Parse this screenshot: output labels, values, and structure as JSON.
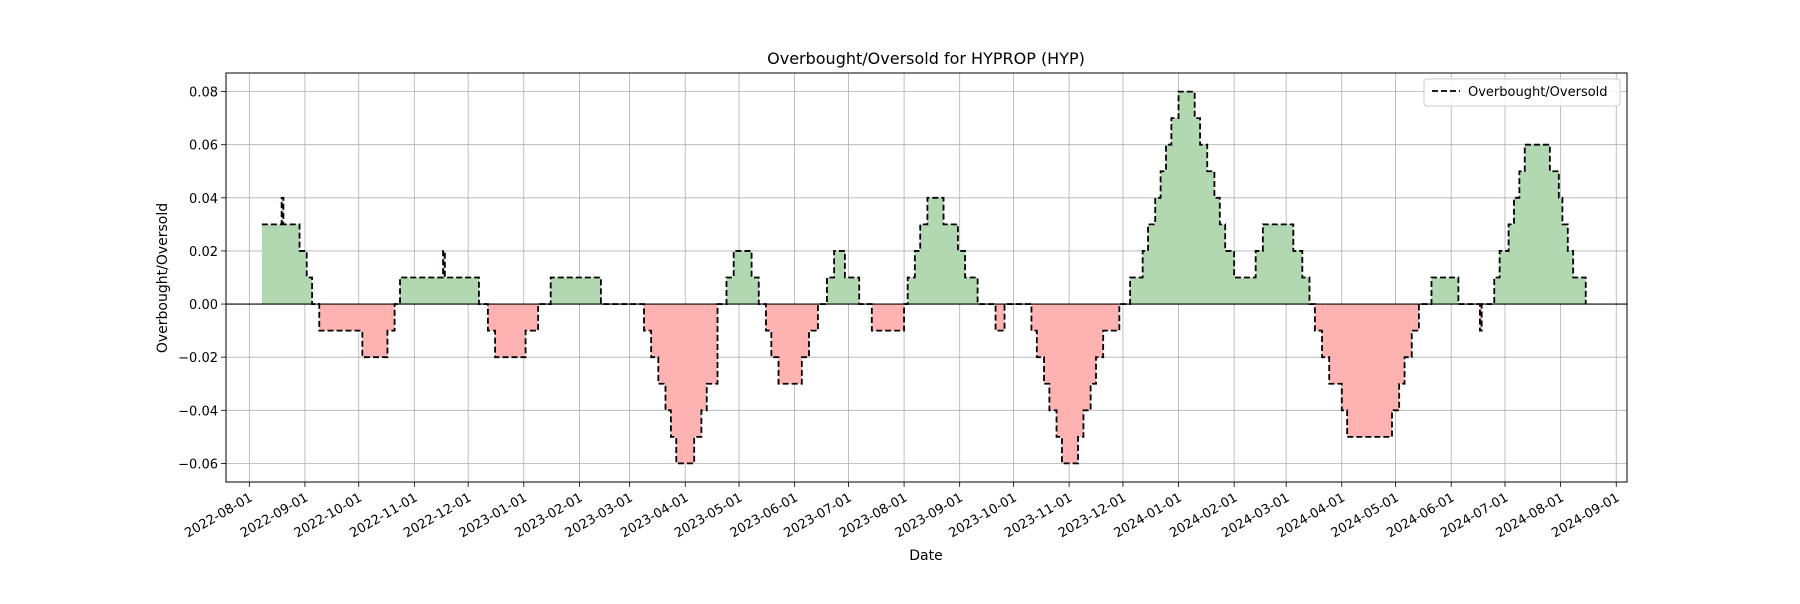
{
  "chart_data": {
    "type": "area",
    "title": "Overbought/Oversold for HYPROP (HYP)",
    "xlabel": "Date",
    "ylabel": "Overbought/Oversold",
    "xlim": [
      "2022-07-19",
      "2024-09-07"
    ],
    "ylim": [
      -0.067,
      0.087
    ],
    "grid": true,
    "legend": {
      "position": "top-right",
      "entries": [
        "Overbought/Oversold"
      ]
    },
    "colors": {
      "positive_fill": "#b2d8b2",
      "negative_fill": "#ffb2b2",
      "line": "#000000",
      "zero_line": "#000000"
    },
    "x_ticks": [
      "2022-08-01",
      "2022-09-01",
      "2022-10-01",
      "2022-11-01",
      "2022-12-01",
      "2023-01-01",
      "2023-02-01",
      "2023-03-01",
      "2023-04-01",
      "2023-05-01",
      "2023-06-01",
      "2023-07-01",
      "2023-08-01",
      "2023-09-01",
      "2023-10-01",
      "2023-11-01",
      "2023-12-01",
      "2024-01-01",
      "2024-02-01",
      "2024-03-01",
      "2024-04-01",
      "2024-05-01",
      "2024-06-01",
      "2024-07-01",
      "2024-08-01",
      "2024-09-01"
    ],
    "y_ticks": [
      -0.06,
      -0.04,
      -0.02,
      0.0,
      0.02,
      0.04,
      0.06,
      0.08
    ],
    "y_tick_labels": [
      "−0.06",
      "−0.04",
      "−0.02",
      "0.00",
      "0.02",
      "0.04",
      "0.06",
      "0.08"
    ],
    "series": [
      {
        "name": "Overbought/Oversold",
        "style": "dashed-step",
        "points": [
          [
            "2022-08-08",
            0.03
          ],
          [
            "2022-08-18",
            0.03
          ],
          [
            "2022-08-19",
            0.04
          ],
          [
            "2022-08-20",
            0.03
          ],
          [
            "2022-08-27",
            0.03
          ],
          [
            "2022-08-29",
            0.02
          ],
          [
            "2022-09-02",
            0.01
          ],
          [
            "2022-09-05",
            0.0
          ],
          [
            "2022-09-09",
            -0.01
          ],
          [
            "2022-09-30",
            -0.01
          ],
          [
            "2022-10-03",
            -0.02
          ],
          [
            "2022-10-14",
            -0.02
          ],
          [
            "2022-10-17",
            -0.01
          ],
          [
            "2022-10-21",
            0.0
          ],
          [
            "2022-10-24",
            0.01
          ],
          [
            "2022-11-16",
            0.01
          ],
          [
            "2022-11-17",
            0.02
          ],
          [
            "2022-11-18",
            0.01
          ],
          [
            "2022-12-05",
            0.01
          ],
          [
            "2022-12-07",
            0.0
          ],
          [
            "2022-12-12",
            -0.01
          ],
          [
            "2022-12-16",
            -0.02
          ],
          [
            "2022-12-30",
            -0.02
          ],
          [
            "2023-01-02",
            -0.01
          ],
          [
            "2023-01-09",
            0.0
          ],
          [
            "2023-01-16",
            0.01
          ],
          [
            "2023-02-10",
            0.01
          ],
          [
            "2023-02-13",
            0.0
          ],
          [
            "2023-03-06",
            0.0
          ],
          [
            "2023-03-09",
            -0.01
          ],
          [
            "2023-03-13",
            -0.02
          ],
          [
            "2023-03-17",
            -0.03
          ],
          [
            "2023-03-21",
            -0.04
          ],
          [
            "2023-03-24",
            -0.05
          ],
          [
            "2023-03-27",
            -0.06
          ],
          [
            "2023-04-06",
            -0.05
          ],
          [
            "2023-04-10",
            -0.04
          ],
          [
            "2023-04-13",
            -0.03
          ],
          [
            "2023-04-19",
            0.0
          ],
          [
            "2023-04-24",
            0.01
          ],
          [
            "2023-04-28",
            0.02
          ],
          [
            "2023-05-08",
            0.01
          ],
          [
            "2023-05-12",
            0.0
          ],
          [
            "2023-05-16",
            -0.01
          ],
          [
            "2023-05-19",
            -0.02
          ],
          [
            "2023-05-23",
            -0.03
          ],
          [
            "2023-06-05",
            -0.02
          ],
          [
            "2023-06-09",
            -0.01
          ],
          [
            "2023-06-14",
            0.0
          ],
          [
            "2023-06-19",
            0.01
          ],
          [
            "2023-06-23",
            0.02
          ],
          [
            "2023-06-29",
            0.01
          ],
          [
            "2023-07-07",
            0.0
          ],
          [
            "2023-07-14",
            -0.01
          ],
          [
            "2023-07-28",
            -0.01
          ],
          [
            "2023-08-01",
            0.0
          ],
          [
            "2023-08-03",
            0.01
          ],
          [
            "2023-08-07",
            0.02
          ],
          [
            "2023-08-10",
            0.03
          ],
          [
            "2023-08-14",
            0.04
          ],
          [
            "2023-08-23",
            0.03
          ],
          [
            "2023-08-31",
            0.02
          ],
          [
            "2023-09-04",
            0.01
          ],
          [
            "2023-09-11",
            0.0
          ],
          [
            "2023-09-18",
            0.0
          ],
          [
            "2023-09-21",
            -0.01
          ],
          [
            "2023-09-26",
            0.0
          ],
          [
            "2023-10-06",
            0.0
          ],
          [
            "2023-10-11",
            -0.01
          ],
          [
            "2023-10-14",
            -0.02
          ],
          [
            "2023-10-18",
            -0.03
          ],
          [
            "2023-10-21",
            -0.04
          ],
          [
            "2023-10-25",
            -0.05
          ],
          [
            "2023-10-28",
            -0.06
          ],
          [
            "2023-11-06",
            -0.05
          ],
          [
            "2023-11-09",
            -0.04
          ],
          [
            "2023-11-13",
            -0.03
          ],
          [
            "2023-11-16",
            -0.02
          ],
          [
            "2023-11-20",
            -0.01
          ],
          [
            "2023-11-29",
            0.0
          ],
          [
            "2023-12-05",
            0.01
          ],
          [
            "2023-12-12",
            0.02
          ],
          [
            "2023-12-15",
            0.03
          ],
          [
            "2023-12-19",
            0.04
          ],
          [
            "2023-12-22",
            0.05
          ],
          [
            "2023-12-25",
            0.06
          ],
          [
            "2023-12-28",
            0.07
          ],
          [
            "2024-01-01",
            0.08
          ],
          [
            "2024-01-10",
            0.07
          ],
          [
            "2024-01-13",
            0.06
          ],
          [
            "2024-01-17",
            0.05
          ],
          [
            "2024-01-21",
            0.04
          ],
          [
            "2024-01-24",
            0.03
          ],
          [
            "2024-01-27",
            0.02
          ],
          [
            "2024-02-01",
            0.01
          ],
          [
            "2024-02-13",
            0.02
          ],
          [
            "2024-02-17",
            0.03
          ],
          [
            "2024-03-05",
            0.02
          ],
          [
            "2024-03-10",
            0.01
          ],
          [
            "2024-03-14",
            0.0
          ],
          [
            "2024-03-17",
            -0.01
          ],
          [
            "2024-03-21",
            -0.02
          ],
          [
            "2024-03-25",
            -0.03
          ],
          [
            "2024-04-01",
            -0.04
          ],
          [
            "2024-04-04",
            -0.05
          ],
          [
            "2024-04-29",
            -0.04
          ],
          [
            "2024-05-03",
            -0.03
          ],
          [
            "2024-05-06",
            -0.02
          ],
          [
            "2024-05-10",
            -0.01
          ],
          [
            "2024-05-14",
            0.0
          ],
          [
            "2024-05-21",
            0.01
          ],
          [
            "2024-06-05",
            0.0
          ],
          [
            "2024-06-17",
            -0.01
          ],
          [
            "2024-06-18",
            0.0
          ],
          [
            "2024-06-25",
            0.01
          ],
          [
            "2024-06-28",
            0.02
          ],
          [
            "2024-07-03",
            0.03
          ],
          [
            "2024-07-06",
            0.04
          ],
          [
            "2024-07-09",
            0.05
          ],
          [
            "2024-07-12",
            0.06
          ],
          [
            "2024-07-26",
            0.05
          ],
          [
            "2024-07-31",
            0.04
          ],
          [
            "2024-08-02",
            0.03
          ],
          [
            "2024-08-05",
            0.02
          ],
          [
            "2024-08-08",
            0.01
          ],
          [
            "2024-08-15",
            0.0
          ]
        ]
      }
    ]
  }
}
